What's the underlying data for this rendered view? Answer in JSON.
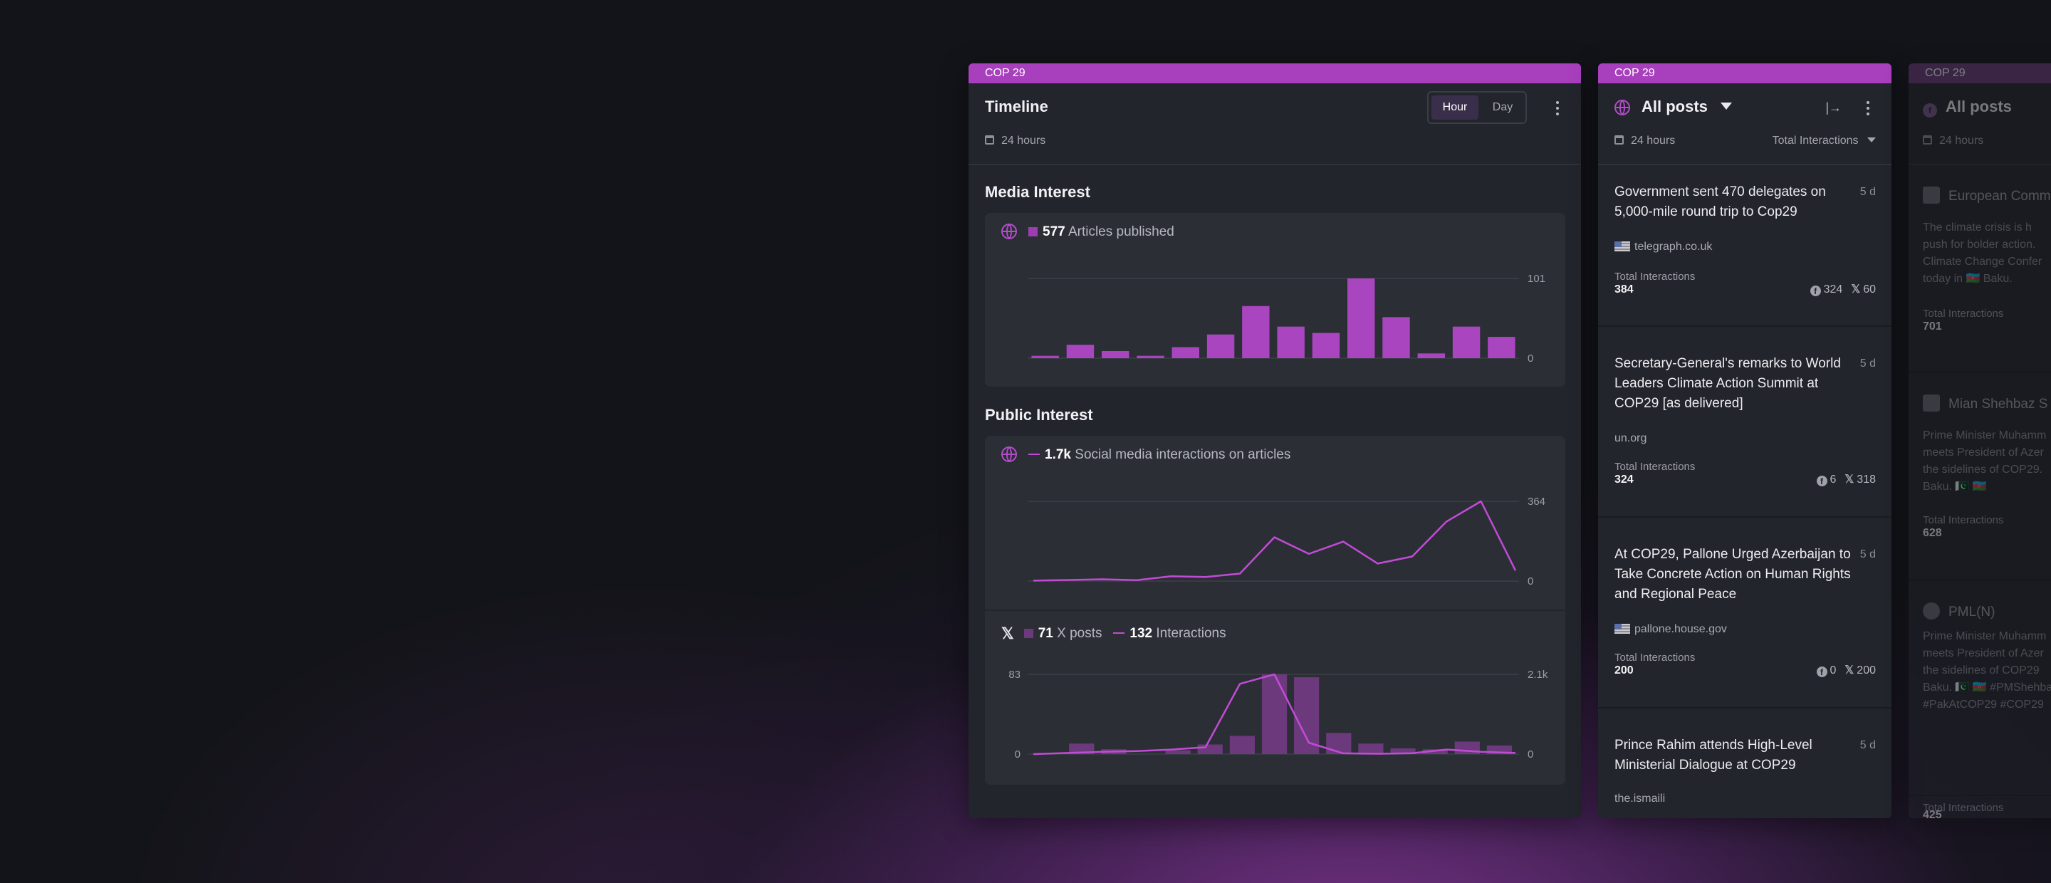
{
  "timeline_panel": {
    "tag": "COP 29",
    "title": "Timeline",
    "toggle": [
      "Hour",
      "Day"
    ],
    "period": "24 hours",
    "media_interest": {
      "title": "Media Interest",
      "count": "577",
      "label": "Articles published",
      "chart_data": {
        "type": "bar",
        "values": [
          3,
          17,
          9,
          3,
          14,
          30,
          66,
          40,
          32,
          101,
          52,
          6,
          40,
          27
        ],
        "ylim": [
          0,
          101
        ],
        "ytick_labels": [
          "101",
          "0"
        ]
      }
    },
    "public_interest": {
      "title": "Public Interest",
      "social": {
        "count": "1.7k",
        "label": "Social media interactions on articles",
        "chart_data": {
          "type": "line",
          "values": [
            2,
            5,
            8,
            4,
            22,
            19,
            34,
            200,
            124,
            180,
            80,
            112,
            272,
            364,
            48
          ],
          "ylim": [
            0,
            364
          ],
          "ytick_labels": [
            "364",
            "0"
          ]
        }
      },
      "x": {
        "posts_count": "71",
        "posts_label": "X posts",
        "interactions_count": "132",
        "interactions_label": "Interactions",
        "chart_data": {
          "type": "bar+line",
          "bars": [
            0,
            11,
            5,
            0,
            4,
            10,
            19,
            83,
            80,
            22,
            11,
            6,
            5,
            13,
            9
          ],
          "line": [
            0,
            30,
            60,
            80,
            120,
            180,
            1850,
            2100,
            300,
            20,
            10,
            25,
            120,
            60,
            30
          ],
          "left_ylim": [
            0,
            83
          ],
          "right_ylim": [
            0,
            2100
          ],
          "left_tick_labels": [
            "83",
            "0"
          ],
          "right_tick_labels": [
            "2.1k",
            "0"
          ]
        }
      }
    }
  },
  "posts_panel": {
    "tag": "COP 29",
    "title": "All posts",
    "period": "24 hours",
    "sort": "Total Interactions",
    "posts": [
      {
        "title": "Government sent 470 delegates on 5,000-mile round trip to Cop29",
        "age": "5 d",
        "source": "telegraph.co.uk",
        "ti_label": "Total Interactions",
        "ti_value": "384",
        "fb": "324",
        "x": "60"
      },
      {
        "title": "Secretary-General's remarks to World Leaders Climate Action Summit at COP29 [as delivered]",
        "age": "5 d",
        "source": "un.org",
        "ti_label": "Total Interactions",
        "ti_value": "324",
        "fb": "6",
        "x": "318"
      },
      {
        "title": "At COP29, Pallone Urged Azerbaijan to Take Concrete Action on Human Rights and Regional Peace",
        "age": "5 d",
        "source": "pallone.house.gov",
        "ti_label": "Total Interactions",
        "ti_value": "200",
        "fb": "0",
        "x": "200"
      },
      {
        "title": "Prince Rahim attends High-Level Ministerial Dialogue at COP29",
        "age": "5 d",
        "source": "the.ismaili"
      }
    ]
  },
  "third_panel": {
    "tag": "COP 29",
    "title": "All posts",
    "period": "24 hours",
    "posts": [
      {
        "author": "European Comm",
        "text": [
          "The climate crisis is h",
          "push for bolder action.",
          "Climate Change Confer",
          "today in 🇦🇿 Baku."
        ],
        "ti_label": "Total Interactions",
        "ti_value": "701"
      },
      {
        "author": "Mian Shehbaz S",
        "text": [
          "Prime Minister Muhamm",
          "meets President of Azer",
          "the sidelines of COP29.",
          "Baku. 🇵🇰 🇦🇿"
        ],
        "ti_label": "Total Interactions",
        "ti_value": "628"
      },
      {
        "author": "PML(N)",
        "text": [
          "Prime Minister Muhamm",
          "meets President of Azer",
          "the sidelines of COP29",
          "Baku. 🇵🇰 🇦🇿 #PMShehbaz",
          "#PakAtCOP29 #COP29"
        ],
        "ti_label": "Total Interactions",
        "ti_value": "425"
      }
    ]
  },
  "colors": {
    "accent": "#a83fbd",
    "bar": "#a845bf",
    "line": "#c24bd6",
    "panel": "#23252c",
    "card": "#2c2e36"
  }
}
